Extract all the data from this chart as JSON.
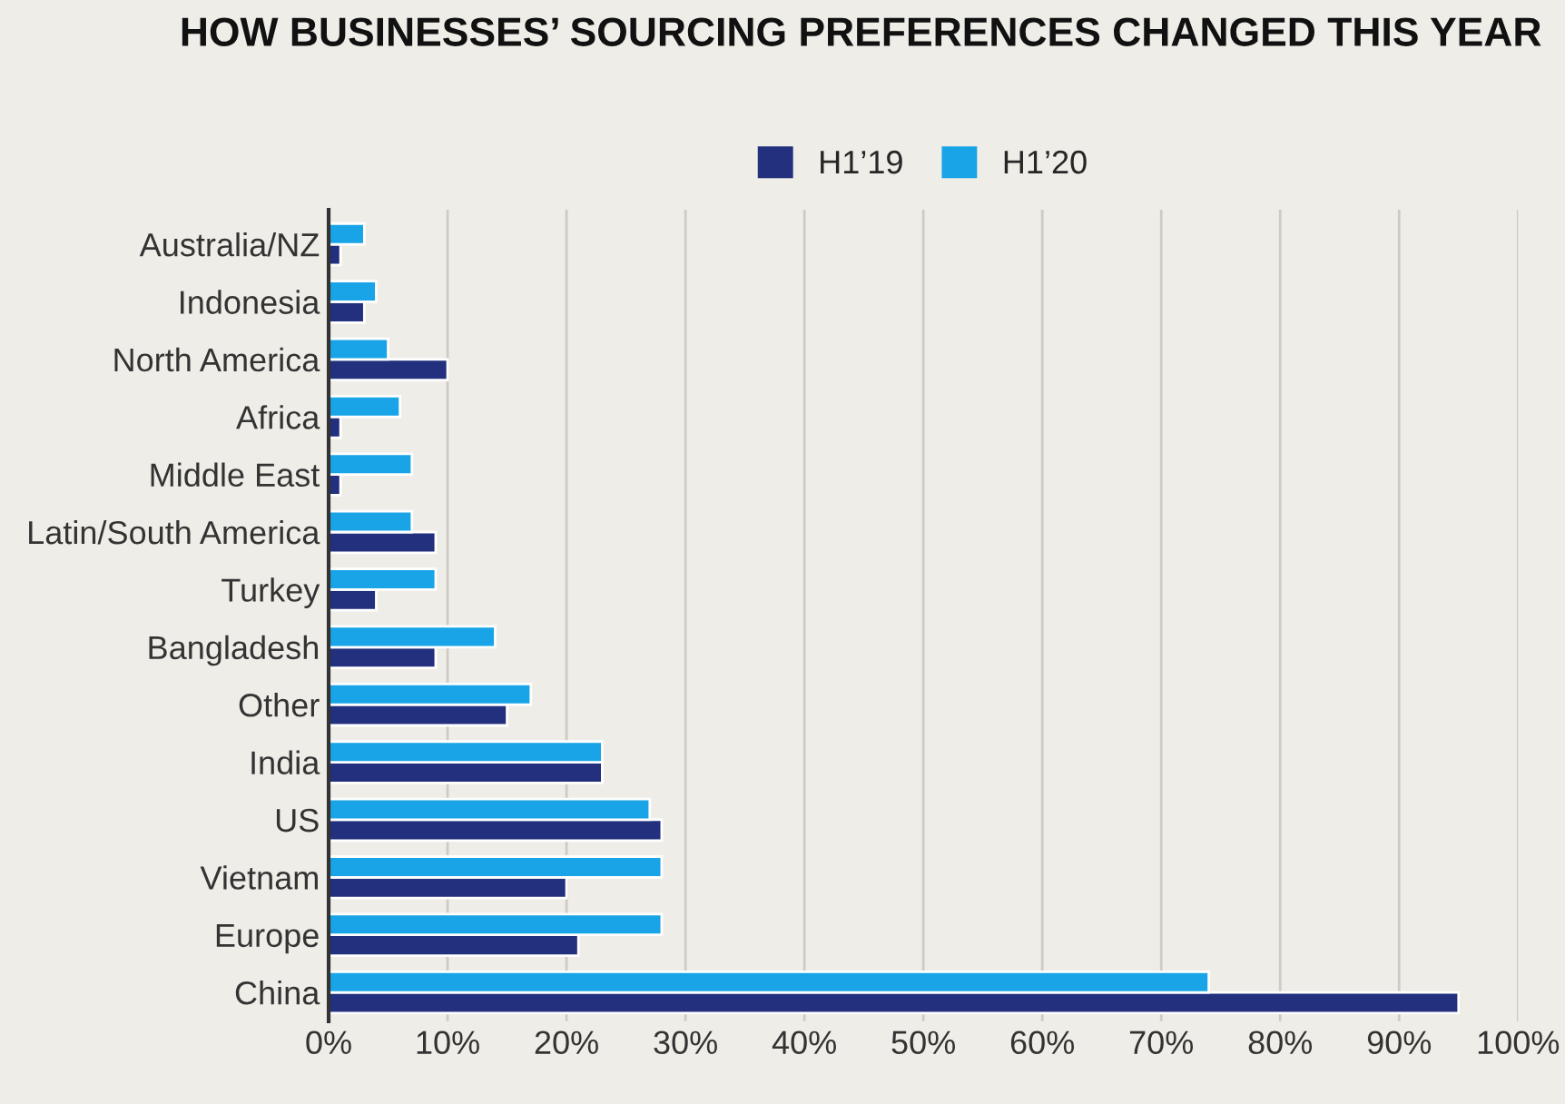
{
  "chart_data": {
    "type": "bar",
    "orientation": "horizontal",
    "title": "HOW BUSINESSES’ SOURCING PREFERENCES CHANGED THIS YEAR",
    "categories": [
      "Australia/NZ",
      "Indonesia",
      "North America",
      "Africa",
      "Middle East",
      "Latin/South America",
      "Turkey",
      "Bangladesh",
      "Other",
      "India",
      "US",
      "Vietnam",
      "Europe",
      "China"
    ],
    "series": [
      {
        "name": "H1’19",
        "color": "#22307e",
        "values": [
          1,
          3,
          10,
          1,
          1,
          9,
          4,
          9,
          15,
          23,
          28,
          20,
          21,
          95
        ]
      },
      {
        "name": "H1’20",
        "color": "#18a4e6",
        "values": [
          3,
          4,
          5,
          6,
          7,
          7,
          9,
          14,
          17,
          23,
          27,
          28,
          28,
          74
        ]
      }
    ],
    "xlim": [
      0,
      100
    ],
    "xticks": [
      {
        "value": 0,
        "label": "0%"
      },
      {
        "value": 10,
        "label": "10%"
      },
      {
        "value": 20,
        "label": "20%"
      },
      {
        "value": 30,
        "label": "30%"
      },
      {
        "value": 40,
        "label": "40%"
      },
      {
        "value": 50,
        "label": "50%"
      },
      {
        "value": 60,
        "label": "60%"
      },
      {
        "value": 70,
        "label": "70%"
      },
      {
        "value": 80,
        "label": "80%"
      },
      {
        "value": 90,
        "label": "90%"
      },
      {
        "value": 100,
        "label": "100%"
      }
    ],
    "grid": "x",
    "legend": "top"
  }
}
